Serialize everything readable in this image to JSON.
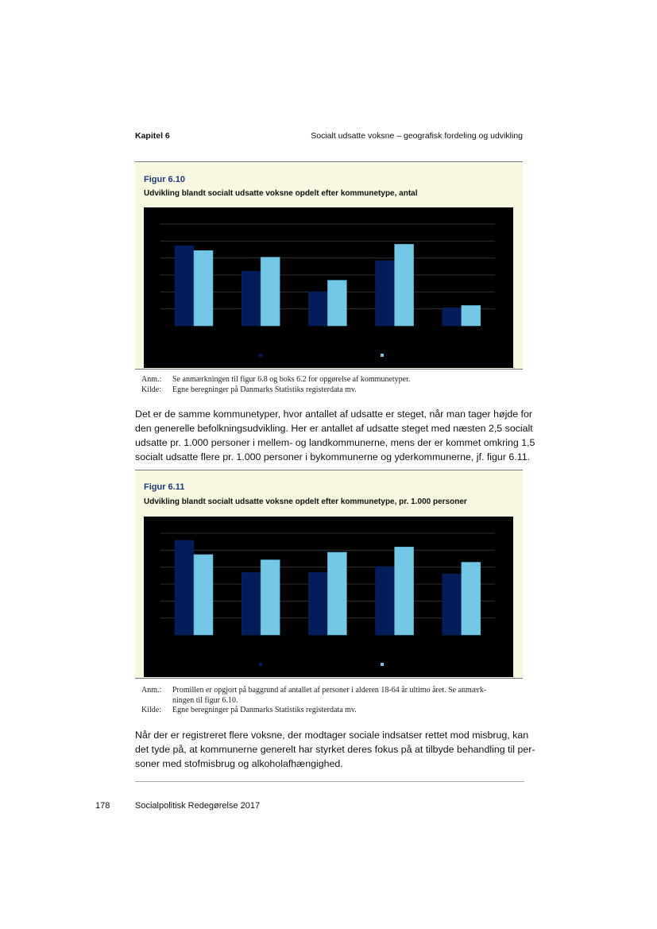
{
  "header": {
    "chapter": "Kapitel 6",
    "section": "Socialt udsatte voksne – geografisk fordeling og udvikling"
  },
  "figure1": {
    "label": "Figur 6.10",
    "title": "Udvikling blandt socialt udsatte voksne opdelt efter kommunetype, antal",
    "notes": [
      {
        "label": "Anm.:",
        "text": "Se anmærkningen til figur 6.8 og boks 6.2 for opgørelse af kommunetyper."
      },
      {
        "label": "Kilde:",
        "text": "Egne beregninger på Danmarks Statistiks registerdata mv."
      }
    ]
  },
  "paragraph1": [
    "Det er de samme kommunetyper, hvor antallet af udsatte er steget, når man tager højde for",
    "den generelle befolkningsudvikling. Her er antallet af udsatte steget med næsten 2,5 socialt",
    "udsatte pr. 1.000 personer i mellem- og landkommunerne, mens der er kommet omkring 1,5",
    "socialt udsatte flere pr. 1.000 personer i bykommunerne og yderkommunerne, jf. figur 6.11."
  ],
  "figure2": {
    "label": "Figur 6.11",
    "title": "Udvikling blandt socialt udsatte voksne opdelt efter kommunetype, pr. 1.000 personer",
    "notes": [
      {
        "label": "Anm.:",
        "text": "Promillen er opgjort på baggrund af antallet af personer i alderen 18-64 år ultimo året. Se anmærk-"
      },
      {
        "label": "",
        "text": "ningen til figur 6.10."
      },
      {
        "label": "Kilde:",
        "text": "Egne beregninger på Danmarks Statistiks registerdata mv."
      }
    ]
  },
  "paragraph2": [
    "Når der er registreret flere voksne, der modtager sociale indsatser rettet mod misbrug, kan",
    "det tyde på, at kommunerne generelt har styrket deres fokus på at tilbyde behandling til per-",
    "soner med stofmisbrug og alkoholafhængighed."
  ],
  "footer": {
    "page_number": "178",
    "publication": "Socialpolitisk Redegørelse 2017"
  },
  "colors": {
    "series_dark": "#041c5a",
    "series_light": "#74c8e6",
    "chart_bg": "#000000",
    "gridline": "#2e2e2e",
    "box_bg": "#f8f7e1",
    "figure_label": "#1d3a7a"
  },
  "chart_data": [
    {
      "type": "bar",
      "title": "",
      "categories": [
        "",
        "",
        "",
        "",
        ""
      ],
      "ylim": [
        0,
        6
      ],
      "grid": true,
      "legend": "bottom",
      "tick_labels_visible": false,
      "series": [
        {
          "values": [
            4.72,
            3.22,
            2.0,
            3.84,
            1.06
          ],
          "color": "#041c5a"
        },
        {
          "values": [
            4.44,
            4.05,
            2.69,
            4.81,
            1.2
          ],
          "color": "#74c8e6"
        }
      ]
    },
    {
      "type": "bar",
      "title": "",
      "categories": [
        "",
        "",
        "",
        "",
        ""
      ],
      "ylim": [
        0,
        6
      ],
      "grid": true,
      "legend": "bottom",
      "tick_labels_visible": false,
      "series": [
        {
          "values": [
            5.58,
            3.69,
            3.69,
            4.03,
            3.59
          ],
          "color": "#041c5a"
        },
        {
          "values": [
            4.74,
            4.43,
            4.88,
            5.19,
            4.29
          ],
          "color": "#74c8e6"
        }
      ]
    }
  ]
}
